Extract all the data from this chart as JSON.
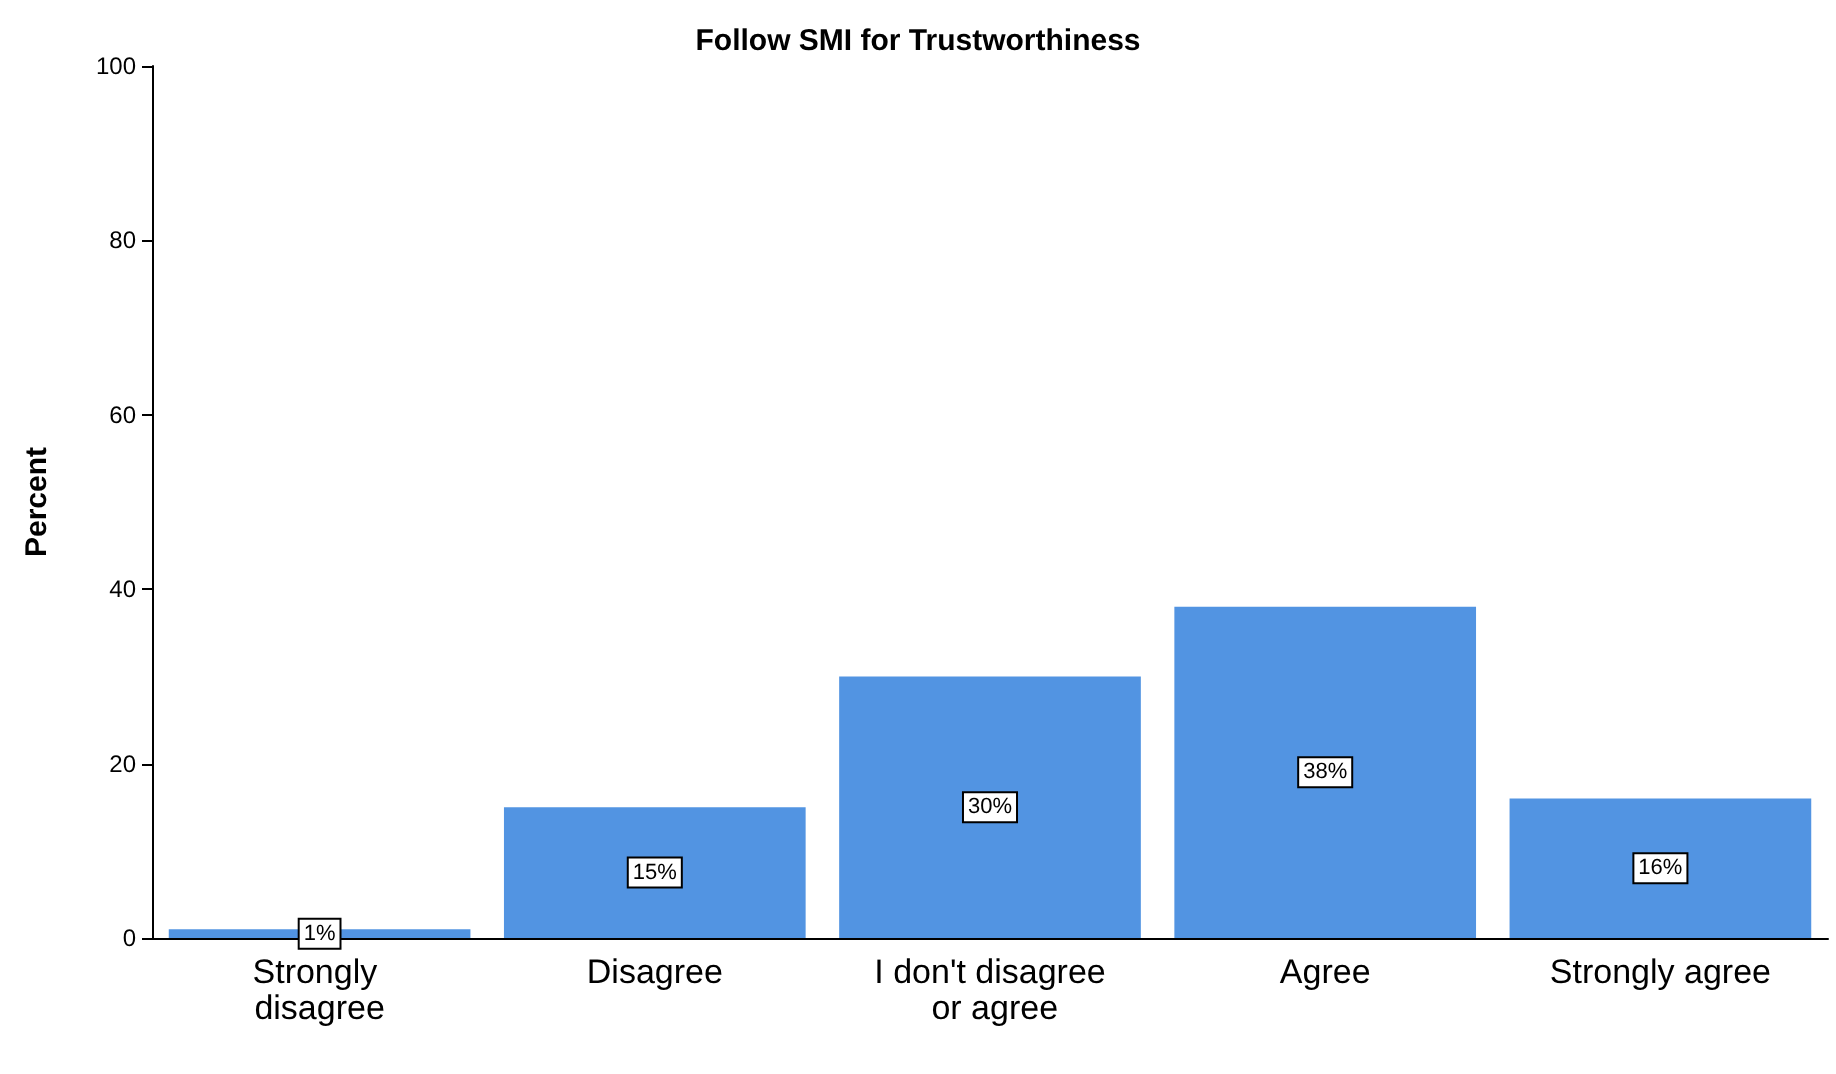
{
  "chart_data": {
    "type": "bar",
    "title": "Follow SMI for Trustworthiness",
    "ylabel": "Percent",
    "categories": [
      "Strongly disagree",
      "Disagree",
      "I don't disagree or agree",
      "Agree",
      "Strongly agree"
    ],
    "values": [
      1,
      15,
      30,
      38,
      16
    ],
    "value_labels": [
      "1%",
      "15%",
      "30%",
      "38%",
      "16%"
    ],
    "color": "#5294e2",
    "ylim": [
      0,
      100
    ],
    "yticks": [
      0,
      20,
      40,
      60,
      80,
      100
    ],
    "grid": false
  }
}
